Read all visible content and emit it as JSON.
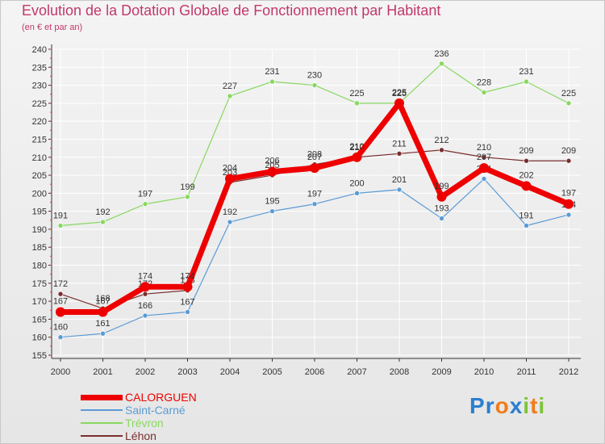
{
  "header": {
    "title": "Evolution de la Dotation Globale de Fonctionnement par Habitant",
    "subtitle": "(en € et par an)"
  },
  "logo": {
    "text": "Proxiti",
    "letters": [
      "P",
      "r",
      "o",
      "x",
      "i",
      "t",
      "i"
    ]
  },
  "colors": {
    "title": "#c2386b",
    "axis": "#333333",
    "CALORGUEN": "#ee0000",
    "Saint-Carné": "#5b9bd5",
    "Trévron": "#88d860",
    "Léhon": "#7a2e2e",
    "logo": [
      "#2a7fcf",
      "#2a7fcf",
      "#f07c1a",
      "#2a7fcf",
      "#7dc43a",
      "#f07c1a",
      "#7dc43a"
    ]
  },
  "chart_data": {
    "type": "line",
    "title": "Evolution de la Dotation Globale de Fonctionnement par Habitant",
    "subtitle": "(en € et par an)",
    "xlabel": "",
    "ylabel": "",
    "x": [
      2000,
      2001,
      2002,
      2003,
      2004,
      2005,
      2006,
      2007,
      2008,
      2009,
      2010,
      2011,
      2012
    ],
    "ylim": [
      155,
      240
    ],
    "yticks": [
      155,
      160,
      165,
      170,
      175,
      180,
      185,
      190,
      195,
      200,
      205,
      210,
      215,
      220,
      225,
      230,
      235,
      240
    ],
    "grid": true,
    "legend": "bottom-left",
    "series": [
      {
        "name": "CALORGUEN",
        "values": [
          167,
          167,
          174,
          174,
          204,
          206,
          207,
          210,
          225,
          199,
          207,
          202,
          197
        ]
      },
      {
        "name": "Saint-Carné",
        "values": [
          160,
          161,
          166,
          167,
          192,
          195,
          197,
          200,
          201,
          193,
          204,
          191,
          194
        ]
      },
      {
        "name": "Trévron",
        "values": [
          191,
          192,
          197,
          199,
          227,
          231,
          230,
          225,
          225,
          236,
          228,
          231,
          225
        ]
      },
      {
        "name": "Léhon",
        "values": [
          172,
          168,
          172,
          173,
          203,
          205,
          208,
          210,
          211,
          212,
          210,
          209,
          209
        ]
      }
    ]
  }
}
